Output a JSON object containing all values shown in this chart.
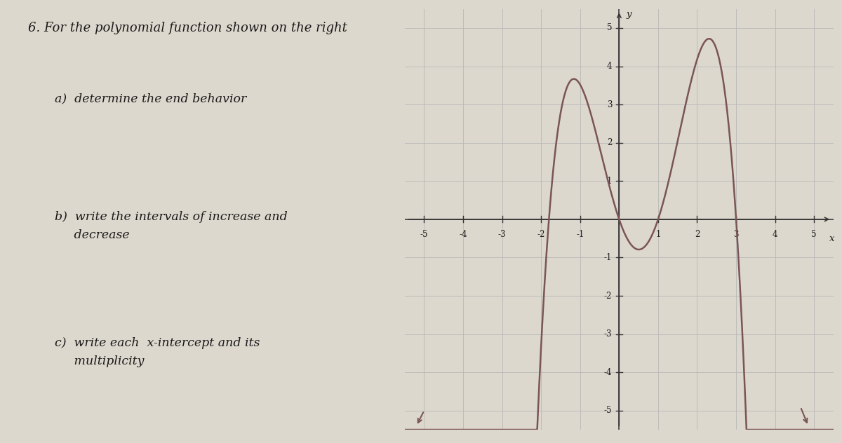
{
  "title": "6. For the polynomial function shown on the right",
  "questions": [
    "a)  determine the end behavior",
    "b)  write the intervals of increase and\n     decrease",
    "c)  write each  x-intercept and its\n     multiplicity"
  ],
  "bg_color": "#ddd8ce",
  "text_color": "#1a1a1a",
  "curve_color": "#7a5555",
  "grid_color": "#b8b8b8",
  "axis_color": "#333333",
  "xlim": [
    -5.5,
    5.5
  ],
  "ylim": [
    -5.5,
    5.5
  ],
  "xticks": [
    -5,
    -4,
    -3,
    -2,
    -1,
    1,
    2,
    3,
    4,
    5
  ],
  "yticks": [
    -5,
    -4,
    -3,
    -2,
    -1,
    1,
    2,
    3,
    4,
    5
  ],
  "xlabel": "x",
  "ylabel": "y",
  "poly_scale": 0.55
}
